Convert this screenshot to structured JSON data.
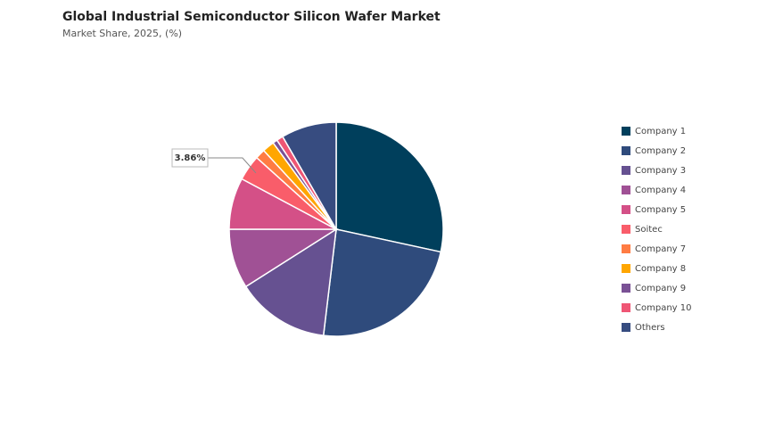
{
  "chart_data": {
    "type": "pie",
    "title": "Global Industrial Semiconductor Silicon Wafer Market",
    "subtitle": "Market Share, 2025, (%)",
    "categories": [
      "Company 1",
      "Company 2",
      "Company 3",
      "Company 4",
      "Company 5",
      "Soitec",
      "Company 7",
      "Company 8",
      "Company 9",
      "Company 10",
      "Others"
    ],
    "values": [
      28.4,
      23.5,
      14.1,
      9,
      7.8,
      3.86,
      1.5,
      1.8,
      0.7,
      1.0,
      8.34
    ],
    "value_labels": [
      null,
      null,
      null,
      null,
      null,
      "3.86%",
      null,
      null,
      null,
      null,
      null
    ],
    "colors": [
      "#003f5c",
      "#2f4b7c",
      "#665191",
      "#a05195",
      "#d45087",
      "#f95d6a",
      "#ff7c43",
      "#ffa600",
      "#7a5195",
      "#ef5675",
      "#374c80"
    ],
    "legend": "right"
  }
}
